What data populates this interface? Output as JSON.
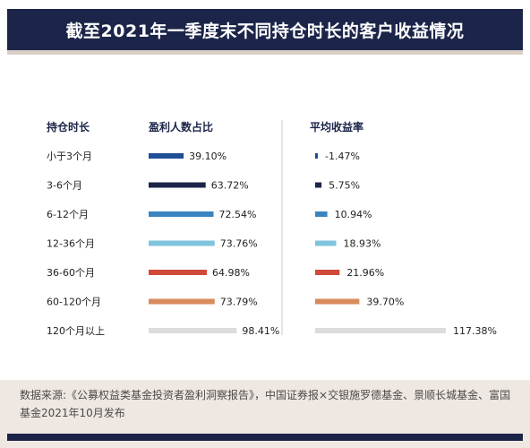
{
  "title": "截至2021年一季度末不同持仓时长的客户收益情况",
  "source": "数据来源:《公募权益类基金投资者盈利洞察报告》，中国证券报×交银施罗德基金、景顺长城基金、富国基金2021年10月发布",
  "chart_data": {
    "type": "bar",
    "orientation": "horizontal",
    "category_header": "持仓时长",
    "categories": [
      "小于3个月",
      "3-6个月",
      "6-12个月",
      "12-36个月",
      "36-60个月",
      "60-120个月",
      "120个月以上"
    ],
    "row_colors": [
      "#1f4e96",
      "#1c2549",
      "#3a85c0",
      "#7fc4dc",
      "#cf4a3a",
      "#d88a5c",
      "#dcdcdc"
    ],
    "series": [
      {
        "name": "盈利人数占比",
        "values": [
          39.1,
          63.72,
          72.54,
          73.76,
          64.98,
          73.79,
          98.41
        ],
        "labels": [
          "39.10%",
          "63.72%",
          "72.54%",
          "73.76%",
          "64.98%",
          "73.79%",
          "98.41%"
        ]
      },
      {
        "name": "平均收益率",
        "values": [
          -1.47,
          5.75,
          10.94,
          18.93,
          21.96,
          39.7,
          117.38
        ],
        "labels": [
          "-1.47%",
          "5.75%",
          "10.94%",
          "18.93%",
          "21.96%",
          "39.70%",
          "117.38%"
        ]
      }
    ]
  }
}
